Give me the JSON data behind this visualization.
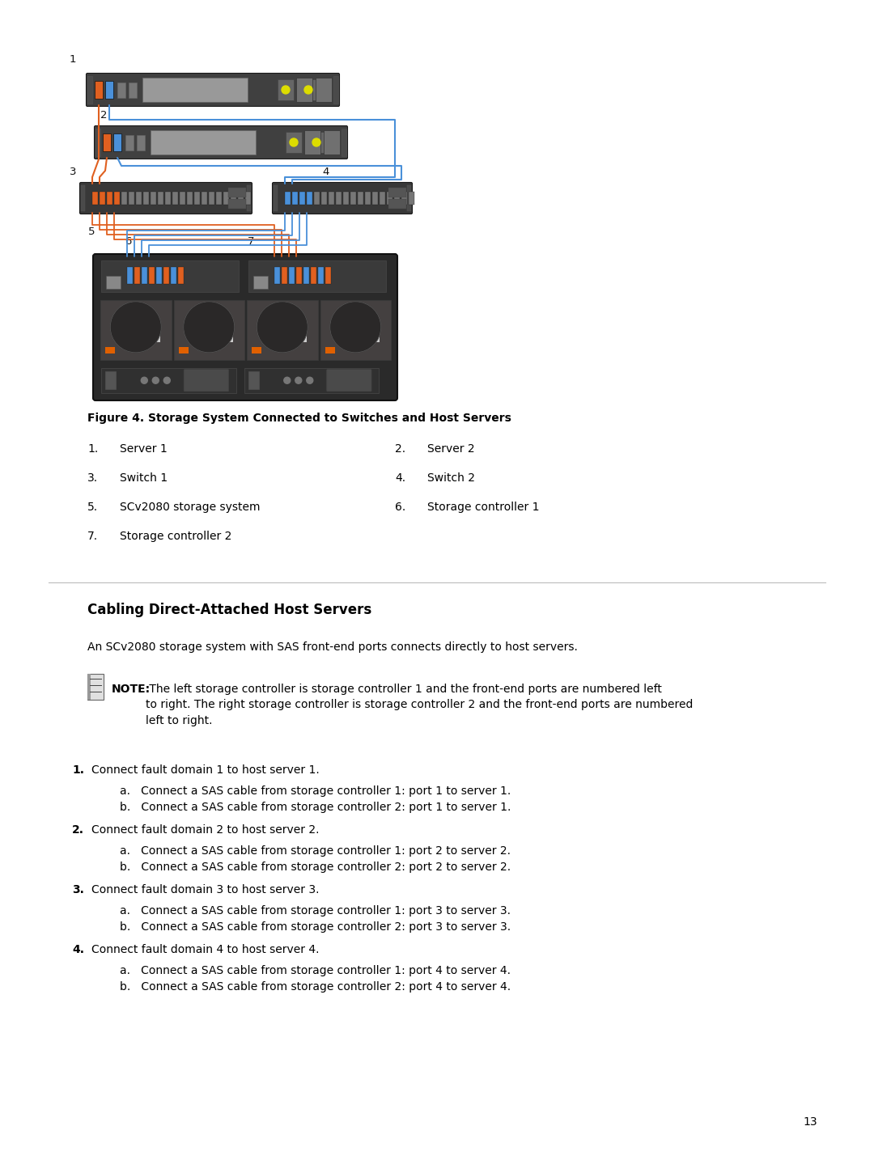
{
  "bg_color": "#ffffff",
  "page_number": "13",
  "figure_caption": "Figure 4. Storage System Connected to Switches and Host Servers",
  "legend_items": [
    {
      "num": "1.",
      "text": "Server 1"
    },
    {
      "num": "2.",
      "text": "Server 2"
    },
    {
      "num": "3.",
      "text": "Switch 1"
    },
    {
      "num": "4.",
      "text": "Switch 2"
    },
    {
      "num": "5.",
      "text": "SCv2080 storage system"
    },
    {
      "num": "6.",
      "text": "Storage controller 1"
    },
    {
      "num": "7.",
      "text": "Storage controller 2"
    }
  ],
  "section_title": "Cabling Direct-Attached Host Servers",
  "intro_text": "An SCv2080 storage system with SAS front-end ports connects directly to host servers.",
  "note_label": "NOTE:",
  "note_text": " The left storage controller is storage controller 1 and the front-end ports are numbered left\nto right. The right storage controller is storage controller 2 and the front-end ports are numbered\nleft to right.",
  "steps": [
    {
      "num": "1.",
      "text": "Connect fault domain 1 to host server 1.",
      "sub": [
        "a.   Connect a SAS cable from storage controller 1: port 1 to server 1.",
        "b.   Connect a SAS cable from storage controller 2: port 1 to server 1."
      ]
    },
    {
      "num": "2.",
      "text": "Connect fault domain 2 to host server 2.",
      "sub": [
        "a.   Connect a SAS cable from storage controller 1: port 2 to server 2.",
        "b.   Connect a SAS cable from storage controller 2: port 2 to server 2."
      ]
    },
    {
      "num": "3.",
      "text": "Connect fault domain 3 to host server 3.",
      "sub": [
        "a.   Connect a SAS cable from storage controller 1: port 3 to server 3.",
        "b.   Connect a SAS cable from storage controller 2: port 3 to server 3."
      ]
    },
    {
      "num": "4.",
      "text": "Connect fault domain 4 to host server 4.",
      "sub": [
        "a.   Connect a SAS cable from storage controller 1: port 4 to server 4.",
        "b.   Connect a SAS cable from storage controller 2: port 4 to server 4."
      ]
    }
  ],
  "orange_color": "#E06020",
  "blue_color": "#4A90D9",
  "dev_dark": "#333333",
  "dev_mid": "#555555",
  "dev_light": "#888888"
}
